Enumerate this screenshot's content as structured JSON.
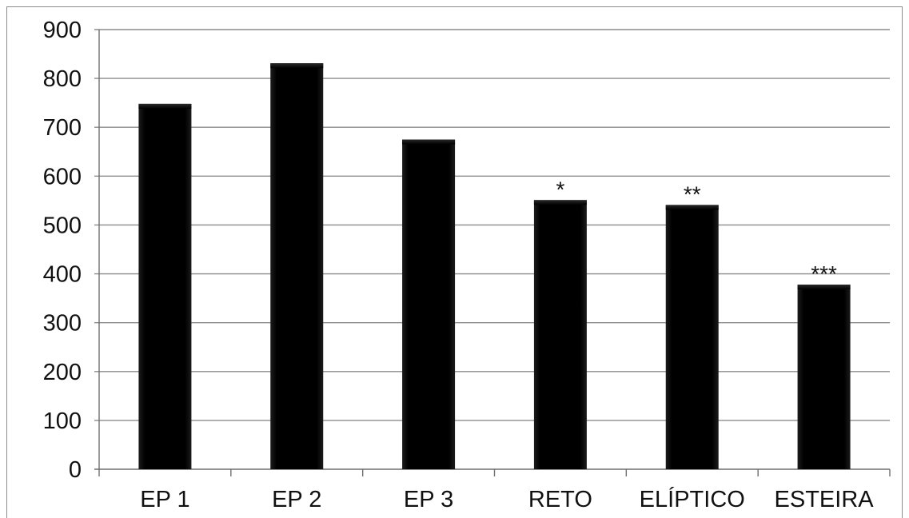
{
  "chart_data": {
    "type": "bar",
    "categories": [
      "EP 1",
      "EP 2",
      "EP 3",
      "RETO",
      "ELÍPTICO",
      "ESTEIRA"
    ],
    "values": [
      748,
      831,
      675,
      551,
      541,
      378
    ],
    "annotations": [
      "",
      "",
      "",
      "*",
      "**",
      "***"
    ],
    "yticks": [
      "0",
      "100",
      "200",
      "300",
      "400",
      "500",
      "600",
      "700",
      "800",
      "900"
    ],
    "ylim": [
      0,
      900
    ],
    "grid": true,
    "legend": false,
    "colors": {
      "bar": "#0a0a0a",
      "grid": "#8c8c8c",
      "axis": "#6e6e6e"
    }
  }
}
